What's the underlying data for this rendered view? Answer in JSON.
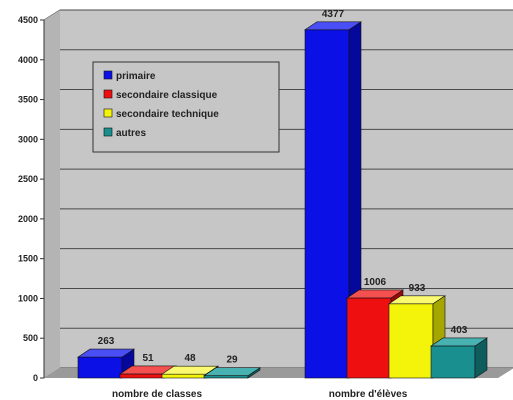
{
  "chart_data": {
    "type": "bar",
    "categories": [
      "nombre de classes",
      "nombre d'élèves"
    ],
    "series": [
      {
        "name": "primaire",
        "values": [
          263,
          4377
        ]
      },
      {
        "name": "secondaire classique",
        "values": [
          51,
          1006
        ]
      },
      {
        "name": "secondaire technique",
        "values": [
          48,
          933
        ]
      },
      {
        "name": "autres",
        "values": [
          29,
          403
        ]
      }
    ],
    "y_ticks": [
      0,
      500,
      1000,
      1500,
      2000,
      2500,
      3000,
      3500,
      4000,
      4500
    ],
    "ylim": [
      0,
      4500
    ],
    "grid": true,
    "legend_position": "top-left",
    "three_d": true,
    "colors": {
      "series": [
        "#0a10e6",
        "#ee1010",
        "#f4f40a",
        "#1a8f8f"
      ],
      "series_side": [
        "#05089a",
        "#9a0808",
        "#a6a600",
        "#0f5c5c"
      ],
      "series_top": [
        "#4a4ff5",
        "#f55050",
        "#fafa70",
        "#48b2b2"
      ],
      "plot_back": "#c6c6c6",
      "floor": "#9a9a9a",
      "grid": "#4a4a4a"
    }
  }
}
